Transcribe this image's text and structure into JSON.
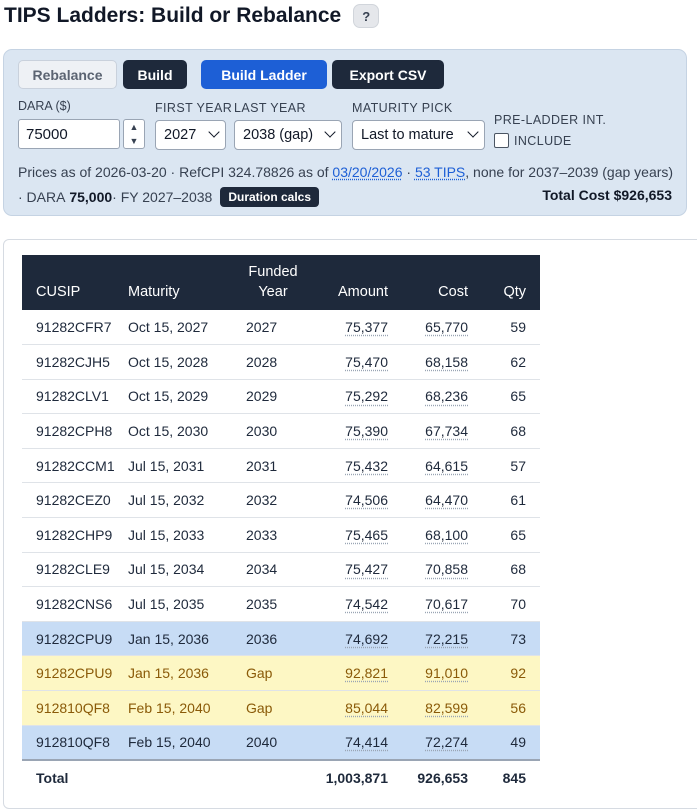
{
  "header": {
    "title": "TIPS Ladders: Build or Rebalance",
    "help_label": "?"
  },
  "controls": {
    "rebalance_label": "Rebalance",
    "build_label": "Build",
    "build_ladder_label": "Build Ladder",
    "export_csv_label": "Export CSV",
    "dara_label": "DARA ($)",
    "dara_value": "75000",
    "first_year_label": "FIRST YEAR",
    "first_year_value": "2027",
    "last_year_label": "LAST YEAR",
    "last_year_value": "2038 (gap)",
    "maturity_pick_label": "MATURITY PICK",
    "maturity_pick_value": "Last to mature",
    "pre_ladder_label": "PRE-LADDER INT.",
    "include_label": "INCLUDE"
  },
  "info": {
    "prices_prefix": "Prices as of 2026-03-20 · RefCPI 324.78826 as of ",
    "refcpi_date": "03/20/2026",
    "sep": " · ",
    "tips_count": "53 TIPS",
    "gap_note": ", none for 2037–2039 (gap years)",
    "dara_prefix": "· DARA ",
    "dara_value": "75,000",
    "fy_text": " · FY 2027–2038",
    "duration_btn": "Duration calcs",
    "total_cost": "Total Cost $926,653"
  },
  "table": {
    "headers": {
      "cusip": "CUSIP",
      "maturity": "Maturity",
      "funded_year_1": "Funded",
      "funded_year_2": "Year",
      "amount": "Amount",
      "cost": "Cost",
      "qty": "Qty"
    },
    "rows": [
      {
        "cusip": "91282CFR7",
        "maturity": "Oct 15, 2027",
        "fy": "2027",
        "amount": "75,377",
        "cost": "65,770",
        "qty": "59",
        "kind": ""
      },
      {
        "cusip": "91282CJH5",
        "maturity": "Oct 15, 2028",
        "fy": "2028",
        "amount": "75,470",
        "cost": "68,158",
        "qty": "62",
        "kind": ""
      },
      {
        "cusip": "91282CLV1",
        "maturity": "Oct 15, 2029",
        "fy": "2029",
        "amount": "75,292",
        "cost": "68,236",
        "qty": "65",
        "kind": ""
      },
      {
        "cusip": "91282CPH8",
        "maturity": "Oct 15, 2030",
        "fy": "2030",
        "amount": "75,390",
        "cost": "67,734",
        "qty": "68",
        "kind": ""
      },
      {
        "cusip": "91282CCM1",
        "maturity": "Jul 15, 2031",
        "fy": "2031",
        "amount": "75,432",
        "cost": "64,615",
        "qty": "57",
        "kind": ""
      },
      {
        "cusip": "91282CEZ0",
        "maturity": "Jul 15, 2032",
        "fy": "2032",
        "amount": "74,506",
        "cost": "64,470",
        "qty": "61",
        "kind": ""
      },
      {
        "cusip": "91282CHP9",
        "maturity": "Jul 15, 2033",
        "fy": "2033",
        "amount": "75,465",
        "cost": "68,100",
        "qty": "65",
        "kind": ""
      },
      {
        "cusip": "91282CLE9",
        "maturity": "Jul 15, 2034",
        "fy": "2034",
        "amount": "75,427",
        "cost": "70,858",
        "qty": "68",
        "kind": ""
      },
      {
        "cusip": "91282CNS6",
        "maturity": "Jul 15, 2035",
        "fy": "2035",
        "amount": "74,542",
        "cost": "70,617",
        "qty": "70",
        "kind": ""
      },
      {
        "cusip": "91282CPU9",
        "maturity": "Jan 15, 2036",
        "fy": "2036",
        "amount": "74,692",
        "cost": "72,215",
        "qty": "73",
        "kind": "blue"
      },
      {
        "cusip": "91282CPU9",
        "maturity": "Jan 15, 2036",
        "fy": "Gap",
        "amount": "92,821",
        "cost": "91,010",
        "qty": "92",
        "kind": "gap"
      },
      {
        "cusip": "912810QF8",
        "maturity": "Feb 15, 2040",
        "fy": "Gap",
        "amount": "85,044",
        "cost": "82,599",
        "qty": "56",
        "kind": "gap"
      },
      {
        "cusip": "912810QF8",
        "maturity": "Feb 15, 2040",
        "fy": "2040",
        "amount": "74,414",
        "cost": "72,274",
        "qty": "49",
        "kind": "blue"
      }
    ],
    "total": {
      "label": "Total",
      "amount": "1,003,871",
      "cost": "926,653",
      "qty": "845"
    }
  },
  "colors": {
    "header_bg": "#1e293b",
    "accent_blue": "#1d5fd6",
    "row_blue": "#c7dcf5",
    "row_gap": "#fdf7c4",
    "panel_bg": "#dbe6f2"
  }
}
